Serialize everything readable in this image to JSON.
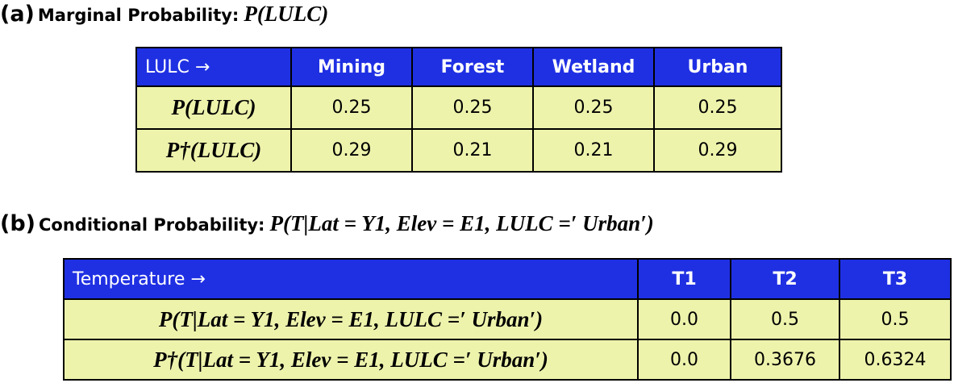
{
  "section_a": {
    "label": "(a)",
    "title": "Marginal Probability:",
    "formula": "P(LULC)",
    "table": {
      "header": [
        "LULC →",
        "Mining",
        "Forest",
        "Wetland",
        "Urban"
      ],
      "rows": [
        [
          "P(LULC)",
          "0.25",
          "0.25",
          "0.25",
          "0.25"
        ],
        [
          "P†(LULC)",
          "0.29",
          "0.21",
          "0.21",
          "0.29"
        ]
      ]
    }
  },
  "section_b": {
    "label": "(b)",
    "title": "Conditional Probability:",
    "formula": "P(T|Lat = Y1, Elev = E1, LULC =′ Urban′)",
    "table": {
      "header": [
        "Temperature →",
        "T1",
        "T2",
        "T3"
      ],
      "rows": [
        [
          "P(T|Lat = Y1, Elev = E1, LULC =′ Urban′)",
          "0.0",
          "0.5",
          "0.5"
        ],
        [
          "P†(T|Lat = Y1, Elev = E1, LULC =′ Urban′)",
          "0.0",
          "0.3676",
          "0.6324"
        ]
      ]
    }
  }
}
